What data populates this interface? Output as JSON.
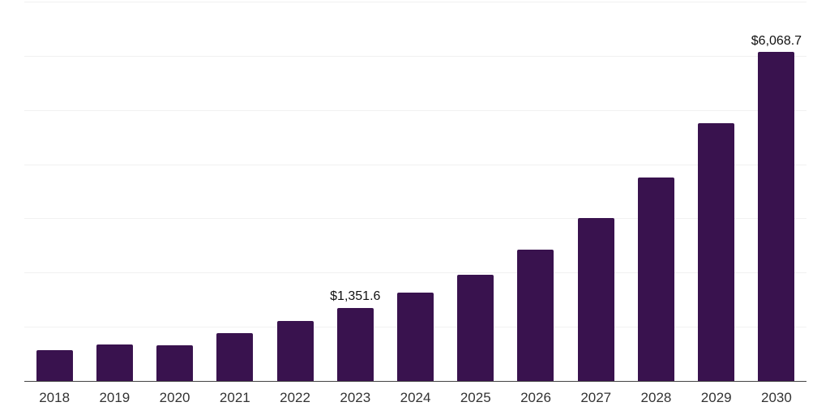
{
  "chart_data": {
    "type": "bar",
    "title": "",
    "xlabel": "",
    "ylabel": "",
    "categories": [
      "2018",
      "2019",
      "2020",
      "2021",
      "2022",
      "2023",
      "2024",
      "2025",
      "2026",
      "2027",
      "2028",
      "2029",
      "2030"
    ],
    "values": [
      573,
      673,
      658,
      882,
      1110,
      1351.6,
      1630,
      1960,
      2420,
      3005,
      3750,
      4750,
      6068.7
    ],
    "data_labels": {
      "2023": "$1,351.6",
      "2030": "$6,068.7"
    },
    "ylim": [
      0,
      7000
    ],
    "gridline_step": 1000,
    "grid": true,
    "y_axis_labels_visible": false,
    "legend_position": "none"
  },
  "style": {
    "bar_color": "#39124E",
    "gridline_color": "#F1F1F1",
    "axis_line_color": "#444444",
    "tick_label_color": "#333333",
    "data_label_color": "#111111",
    "background_color": "#FFFFFF"
  }
}
